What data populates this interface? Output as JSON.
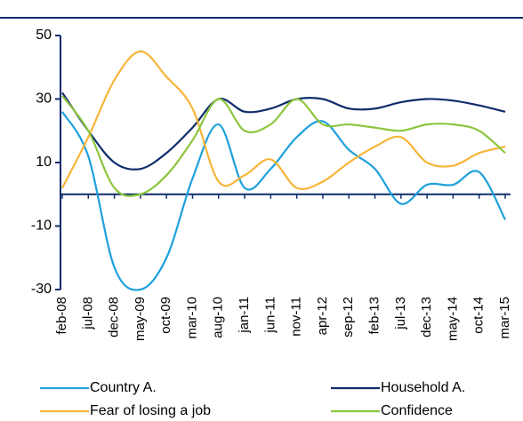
{
  "chart_data": {
    "type": "line",
    "categories": [
      "feb-08",
      "jul-08",
      "dec-08",
      "may-09",
      "oct-09",
      "mar-10",
      "aug-10",
      "jan-11",
      "jun-11",
      "nov-11",
      "apr-12",
      "sep-12",
      "feb-13",
      "jul-13",
      "dec-13",
      "may-14",
      "oct-14",
      "mar-15"
    ],
    "series": [
      {
        "name": "Country A.",
        "color": "#1ea0dc",
        "values": [
          26,
          12,
          -23,
          -30,
          -20,
          5,
          22,
          2,
          8,
          18,
          23,
          14,
          8,
          -3,
          3,
          3,
          7,
          -8
        ]
      },
      {
        "name": "Household A.",
        "color": "#0f2d6b",
        "values": [
          32,
          20,
          10,
          8,
          13,
          21,
          30,
          26,
          27,
          30,
          30,
          27,
          27,
          29,
          30,
          29.5,
          28,
          26
        ]
      },
      {
        "name": "Fear of losing a job",
        "color": "#f7b538",
        "values": [
          2,
          18,
          36,
          45,
          37,
          27,
          4,
          6,
          11,
          2,
          4,
          10,
          15,
          18,
          10,
          9,
          13,
          15
        ]
      },
      {
        "name": "Confidence",
        "color": "#8dc63f",
        "values": [
          31,
          20,
          2,
          0,
          6,
          17,
          30,
          20,
          22,
          30,
          22,
          22,
          21,
          20,
          22,
          22,
          20,
          13
        ]
      }
    ],
    "ylim": [
      -30,
      50
    ],
    "yticks": [
      -30,
      -10,
      10,
      30,
      50
    ],
    "legend": "bottom"
  }
}
